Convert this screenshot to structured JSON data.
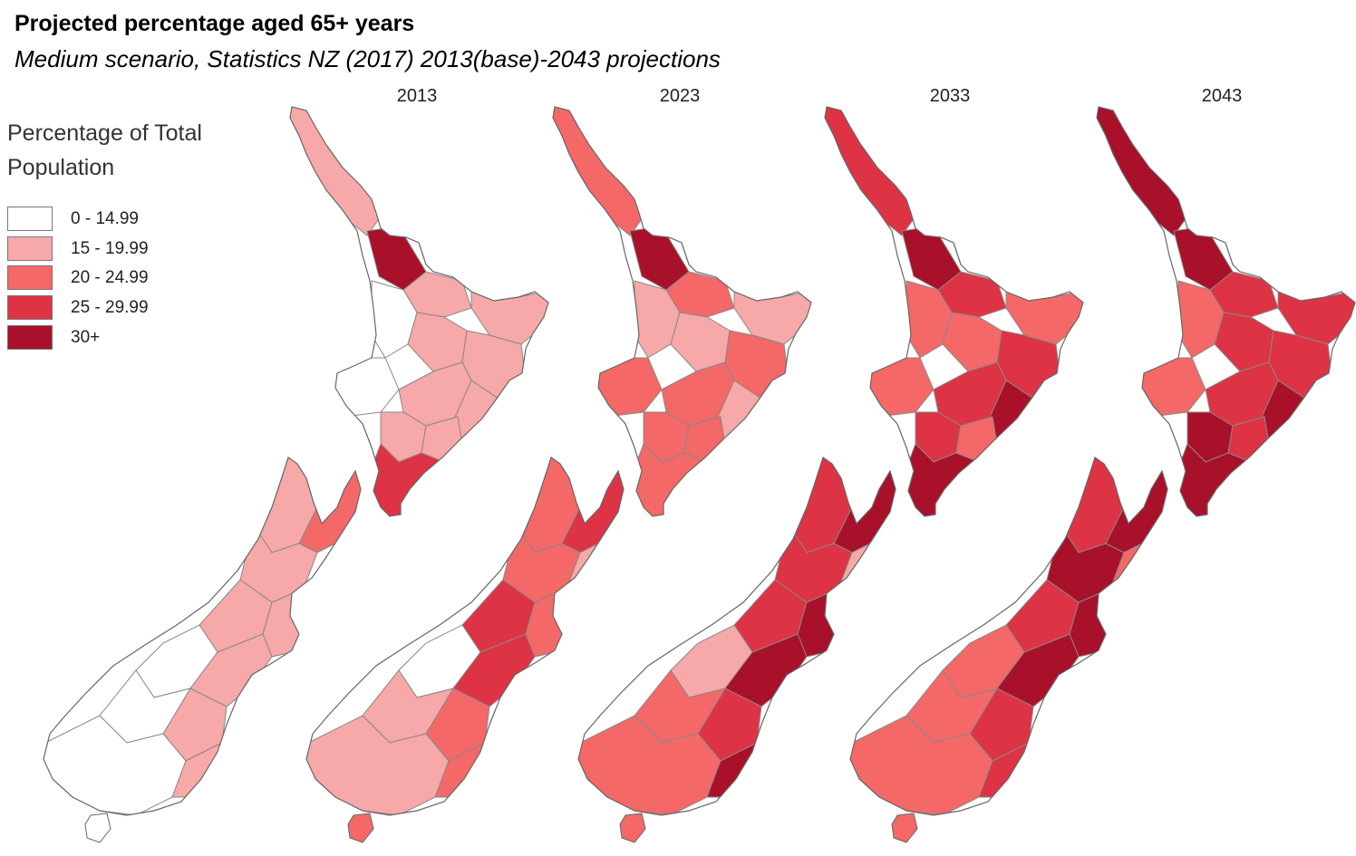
{
  "title": "Projected percentage aged 65+ years",
  "subtitle": "Medium scenario, Statistics NZ (2017) 2013(base)-2043 projections",
  "legend": {
    "title": "Percentage of Total Population",
    "items": [
      {
        "label": "0 - 14.99",
        "color": "#ffffff"
      },
      {
        "label": "15 - 19.99",
        "color": "#f7a8a8"
      },
      {
        "label": "20 - 24.99",
        "color": "#f46868"
      },
      {
        "label": "25 - 29.99",
        "color": "#de3344"
      },
      {
        "label": "30+",
        "color": "#a9102a"
      }
    ]
  },
  "maps": [
    {
      "year": "2013"
    },
    {
      "year": "2023"
    },
    {
      "year": "2033"
    },
    {
      "year": "2043"
    }
  ]
}
